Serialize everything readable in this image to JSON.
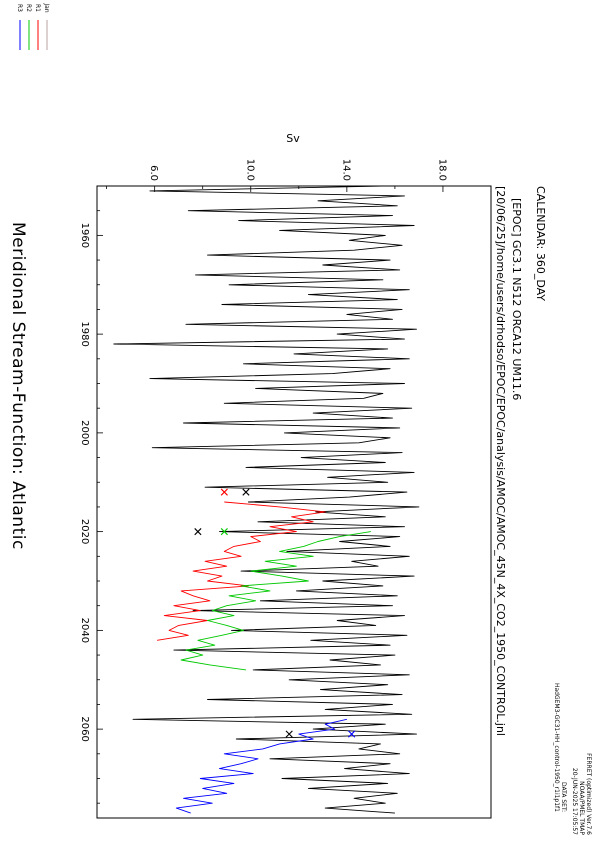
{
  "header": {
    "calendar": "CALENDAR: 360_DAY",
    "run_title": "[EPOC] GC3.1 N512 ORCA12 UM11.6",
    "path": "[20/06/25]/home/users/drhodso/EPOC/EPOC/analysis/AMOC/AMOC_45N_4X_CO2_1950_CONTROL.jnl",
    "ferret_lines": [
      "FERRET (optimized) Ver.7.6",
      "NOAA/PMEL TMAP",
      "20-JUN-2025 17:05:57"
    ],
    "dataset_lines": [
      "DATA SET:",
      "HadGEM3-GC31-HH_control-1950_r1i1p1f1"
    ]
  },
  "plot_title": "Meridional Stream-Function: Atlantic",
  "legend": {
    "items": [
      {
        "label": "Jan",
        "color": "#b9a0a0"
      },
      {
        "label": "R1",
        "color": "#ff0000"
      },
      {
        "label": "R2",
        "color": "#00c800"
      },
      {
        "label": "R3",
        "color": "#0000ff"
      }
    ]
  },
  "chart_data": {
    "type": "line",
    "title": "Meridional Stream-Function: Atlantic",
    "xlabel": "",
    "ylabel": "Sv",
    "xlim": [
      1950,
      2078
    ],
    "ylim": [
      3.6,
      20.0
    ],
    "x_ticks": [
      1960,
      1980,
      2000,
      2020,
      2040,
      2060
    ],
    "y_ticks": [
      6.0,
      10.0,
      14.0,
      18.0
    ],
    "y_tick_labels": [
      "6.0",
      "10.0",
      "14.0",
      "18.0"
    ],
    "series": [
      {
        "name": "Jan",
        "color": "#000000",
        "x": [
          1950,
          1951,
          1952,
          1953,
          1954,
          1955,
          1956,
          1957,
          1958,
          1959,
          1960,
          1961,
          1962,
          1963,
          1964,
          1965,
          1966,
          1967,
          1968,
          1969,
          1970,
          1971,
          1972,
          1973,
          1974,
          1975,
          1976,
          1977,
          1978,
          1979,
          1980,
          1981,
          1982,
          1983,
          1984,
          1985,
          1986,
          1987,
          1988,
          1989,
          1990,
          1991,
          1992,
          1993,
          1994,
          1995,
          1996,
          1997,
          1998,
          1999,
          2000,
          2001,
          2002,
          2003,
          2004,
          2005,
          2006,
          2007,
          2008,
          2009,
          2010,
          2011,
          2012,
          2013,
          2014,
          2015,
          2016,
          2017,
          2018,
          2019,
          2020,
          2021,
          2022,
          2023,
          2024,
          2025,
          2026,
          2027,
          2028,
          2029,
          2030,
          2031,
          2032,
          2033,
          2034,
          2035,
          2036,
          2037,
          2038,
          2039,
          2040,
          2041,
          2042,
          2043,
          2044,
          2045,
          2046,
          2047,
          2048,
          2049,
          2050,
          2051,
          2052,
          2053,
          2054,
          2055,
          2056,
          2057,
          2058,
          2059,
          2060,
          2061,
          2062,
          2063,
          2064,
          2065,
          2066,
          2067,
          2068,
          2069,
          2070,
          2071,
          2072,
          2073,
          2074,
          2075,
          2076,
          2077
        ],
        "y": [
          15.5,
          5.8,
          16.4,
          12.8,
          16.1,
          7.4,
          15.9,
          9.5,
          16.8,
          11.2,
          15.6,
          14.1,
          16.3,
          14.3,
          8.2,
          15.8,
          13.0,
          16.2,
          7.7,
          15.5,
          9.1,
          16.6,
          12.4,
          16.1,
          8.8,
          16.3,
          14.0,
          15.9,
          7.3,
          16.9,
          13.6,
          16.4,
          4.3,
          15.7,
          11.8,
          16.6,
          9.7,
          15.8,
          13.4,
          5.8,
          16.4,
          10.2,
          15.5,
          14.7,
          8.9,
          16.7,
          12.6,
          15.9,
          7.2,
          16.2,
          11.4,
          15.8,
          14.5,
          5.9,
          16.3,
          12.1,
          15.6,
          9.8,
          16.8,
          13.2,
          15.7,
          8.1,
          16.5,
          14.1,
          9.9,
          17.0,
          12.7,
          15.6,
          10.3,
          16.4,
          8.7,
          16.2,
          13.7,
          15.8,
          11.5,
          16.6,
          14.2,
          15.3,
          9.6,
          16.8,
          13.0,
          15.5,
          11.9,
          16.1,
          10.4,
          15.9,
          7.6,
          16.4,
          13.6,
          15.2,
          9.2,
          16.5,
          12.5,
          15.8,
          6.8,
          16.0,
          13.3,
          15.4,
          10.1,
          16.6,
          11.6,
          15.7,
          12.9,
          16.3,
          8.2,
          15.9,
          13.1,
          16.7,
          5.1,
          15.6,
          12.6,
          16.9,
          9.4,
          15.4,
          14.5,
          16.2,
          10.8,
          15.8,
          13.9,
          16.6,
          11.3,
          15.7,
          12.4,
          16.1,
          14.3,
          15.6,
          13.1,
          16.0
        ]
      },
      {
        "name": "R1",
        "color": "#ff0000",
        "x": [
          2014,
          2015,
          2016,
          2017,
          2018,
          2019,
          2020,
          2021,
          2022,
          2023,
          2024,
          2025,
          2026,
          2027,
          2028,
          2029,
          2030,
          2031,
          2032,
          2033,
          2034,
          2035,
          2036,
          2037,
          2038,
          2039,
          2040,
          2041,
          2042
        ],
        "y": [
          8.9,
          11.2,
          13.1,
          11.7,
          12.6,
          10.8,
          11.9,
          10.0,
          10.4,
          9.3,
          8.9,
          9.6,
          8.1,
          9.0,
          7.6,
          8.8,
          8.2,
          9.9,
          7.1,
          7.6,
          8.3,
          6.8,
          7.9,
          6.4,
          8.2,
          7.0,
          6.6,
          7.4,
          6.1
        ]
      },
      {
        "name": "R2",
        "color": "#00c800",
        "x": [
          2020,
          2021,
          2022,
          2023,
          2024,
          2025,
          2026,
          2027,
          2028,
          2029,
          2030,
          2031,
          2032,
          2033,
          2034,
          2035,
          2036,
          2037,
          2038,
          2039,
          2040,
          2041,
          2042,
          2043,
          2044,
          2045,
          2046,
          2047,
          2048
        ],
        "y": [
          15.0,
          13.7,
          12.8,
          12.2,
          11.2,
          12.6,
          10.6,
          11.9,
          10.0,
          11.3,
          12.4,
          9.6,
          10.8,
          9.1,
          10.2,
          9.0,
          8.4,
          9.3,
          8.2,
          9.0,
          9.7,
          8.8,
          7.8,
          8.5,
          7.3,
          8.0,
          7.1,
          8.3,
          9.8
        ]
      },
      {
        "name": "R3",
        "color": "#0000ff",
        "x": [
          2058,
          2059,
          2060,
          2061,
          2062,
          2063,
          2064,
          2065,
          2066,
          2067,
          2068,
          2069,
          2070,
          2071,
          2072,
          2073,
          2074,
          2075,
          2076,
          2077
        ],
        "y": [
          14.0,
          13.1,
          13.5,
          12.0,
          12.6,
          11.2,
          10.5,
          8.9,
          10.3,
          9.6,
          8.7,
          10.1,
          7.9,
          9.3,
          8.0,
          9.0,
          7.2,
          8.4,
          6.9,
          7.5
        ]
      }
    ],
    "markers": [
      {
        "series": "Jan",
        "x": 2012,
        "y": 9.8
      },
      {
        "series": "R1",
        "x": 2012,
        "y": 8.9
      },
      {
        "series": "Jan",
        "x": 2020,
        "y": 7.8
      },
      {
        "series": "R2",
        "x": 2020,
        "y": 8.9
      },
      {
        "series": "Jan",
        "x": 2061,
        "y": 11.6
      },
      {
        "series": "R3",
        "x": 2061,
        "y": 14.2
      }
    ]
  }
}
